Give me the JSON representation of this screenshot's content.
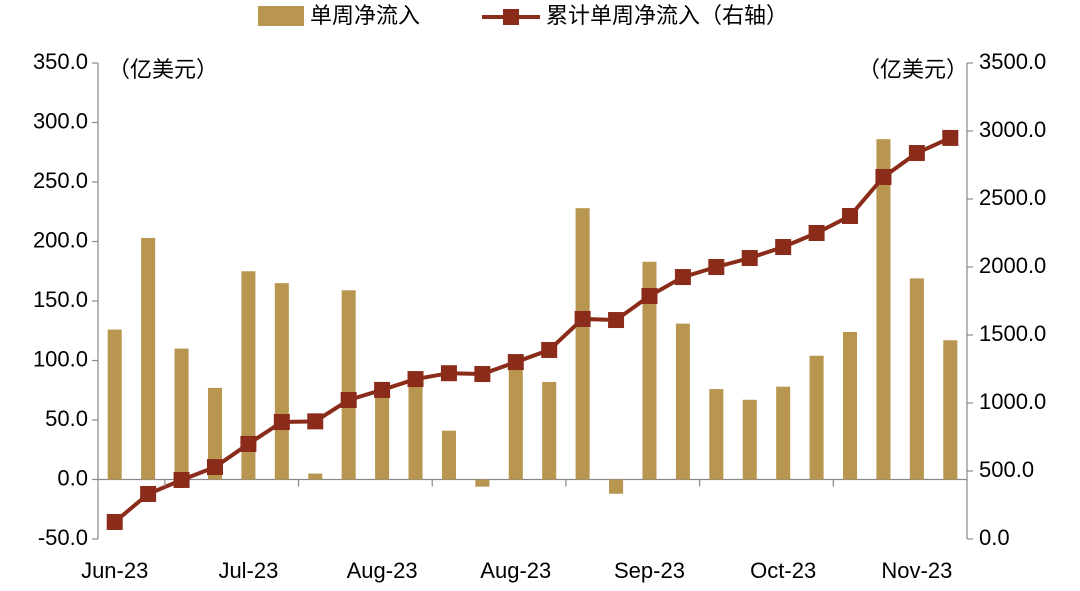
{
  "chart_data": {
    "type": "bar_line",
    "legend_position": "top",
    "y_unit_label": "（亿美元）",
    "y2_unit_label": "（亿美元）",
    "categories": [
      "Jun-23",
      null,
      null,
      null,
      "Jul-23",
      null,
      null,
      null,
      "Aug-23",
      null,
      null,
      null,
      "Aug-23",
      null,
      null,
      null,
      "Sep-23",
      null,
      null,
      null,
      "Oct-23",
      null,
      null,
      null,
      "Nov-23",
      null
    ],
    "series": [
      {
        "name": "单周净流入",
        "color": "#b8964f",
        "kind": "bar",
        "values": [
          126,
          203,
          110,
          77,
          175,
          165,
          5,
          159,
          80,
          80,
          41,
          -6,
          97,
          82,
          228,
          -12,
          183,
          131,
          76,
          67,
          78,
          104,
          124,
          286,
          169,
          117
        ]
      },
      {
        "name": "累计单周净流入（右轴）",
        "color": "#8b2c1a",
        "kind": "line",
        "axis": "y2",
        "values": [
          125,
          331,
          434,
          529,
          699,
          860,
          865,
          1022,
          1096,
          1176,
          1219,
          1213,
          1301,
          1390,
          1618,
          1610,
          1787,
          1926,
          2000,
          2066,
          2147,
          2250,
          2375,
          2662,
          2838,
          2949
        ]
      }
    ],
    "ylim": [
      -50,
      350
    ],
    "yticks": [
      {
        "value": -50,
        "label": "-50.0"
      },
      {
        "value": 0,
        "label": "0.0"
      },
      {
        "value": 50,
        "label": "50.0"
      },
      {
        "value": 100,
        "label": "100.0"
      },
      {
        "value": 150,
        "label": "150.0"
      },
      {
        "value": 200,
        "label": "200.0"
      },
      {
        "value": 250,
        "label": "250.0"
      },
      {
        "value": 300,
        "label": "300.0"
      },
      {
        "value": 350,
        "label": "350.0"
      }
    ],
    "y2lim": [
      0,
      3500
    ],
    "y2ticks": [
      {
        "value": 0,
        "label": "0.0"
      },
      {
        "value": 500,
        "label": "500.0"
      },
      {
        "value": 1000,
        "label": "1000.0"
      },
      {
        "value": 1500,
        "label": "1500.0"
      },
      {
        "value": 2000,
        "label": "2000.0"
      },
      {
        "value": 2500,
        "label": "2500.0"
      },
      {
        "value": 3000,
        "label": "3000.0"
      },
      {
        "value": 3500,
        "label": "3500.0"
      }
    ],
    "grid": false
  }
}
